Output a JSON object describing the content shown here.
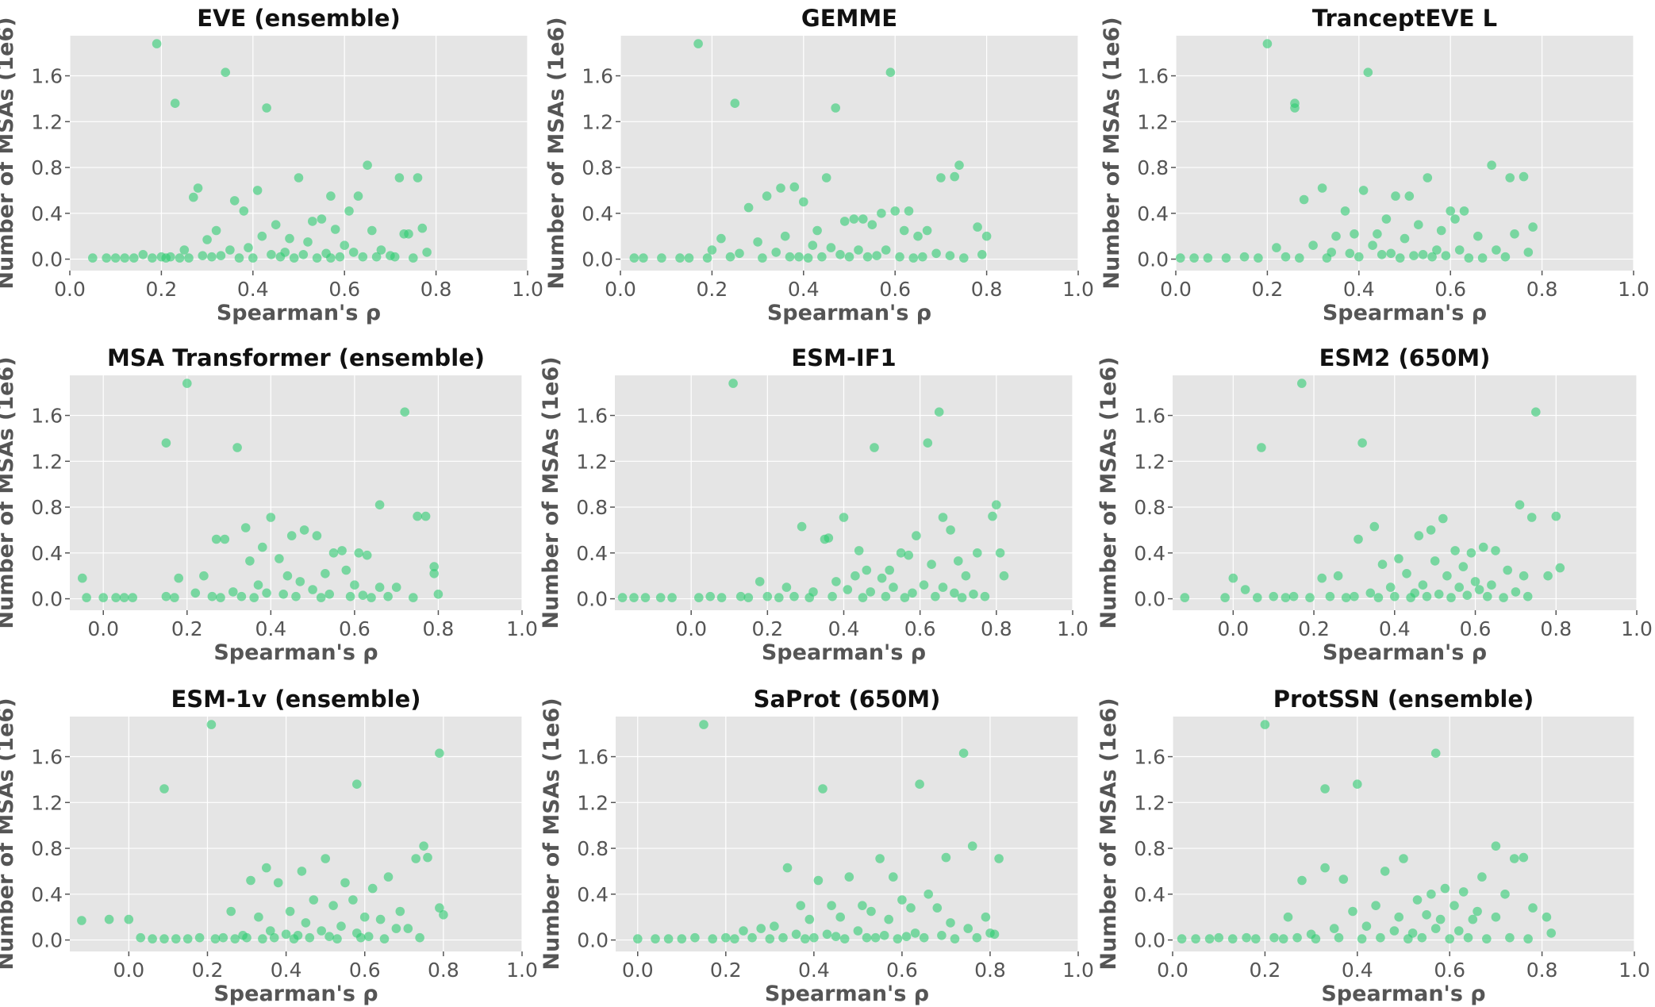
{
  "chart_data": [
    {
      "type": "scatter",
      "title": "EVE (ensemble)",
      "xlabel": "Spearman's ρ",
      "ylabel": "Number of MSAs (1e6)",
      "xlim": [
        0.0,
        1.0
      ],
      "ylim": [
        -0.1,
        1.95
      ],
      "xticks": [
        "0.0",
        "0.2",
        "0.4",
        "0.6",
        "0.8",
        "1.0"
      ],
      "yticks": [
        "0.0",
        "0.4",
        "0.8",
        "1.2",
        "1.6"
      ],
      "x": [
        0.19,
        0.34,
        0.23,
        0.43,
        0.65,
        0.72,
        0.76,
        0.28,
        0.27,
        0.41,
        0.5,
        0.36,
        0.38,
        0.57,
        0.63,
        0.61,
        0.53,
        0.55,
        0.45,
        0.32,
        0.74,
        0.73,
        0.77,
        0.42,
        0.48,
        0.58,
        0.66,
        0.3,
        0.52,
        0.6,
        0.39,
        0.25,
        0.35,
        0.47,
        0.56,
        0.62,
        0.68,
        0.44,
        0.33,
        0.29,
        0.51,
        0.59,
        0.64,
        0.37,
        0.46,
        0.54,
        0.7,
        0.24,
        0.05,
        0.08,
        0.1,
        0.12,
        0.14,
        0.16,
        0.18,
        0.2,
        0.21,
        0.22,
        0.26,
        0.31,
        0.4,
        0.49,
        0.57,
        0.67,
        0.71,
        0.75,
        0.78
      ],
      "y": [
        1.88,
        1.63,
        1.36,
        1.32,
        0.82,
        0.71,
        0.71,
        0.62,
        0.54,
        0.6,
        0.71,
        0.51,
        0.42,
        0.55,
        0.55,
        0.42,
        0.33,
        0.35,
        0.3,
        0.25,
        0.22,
        0.22,
        0.27,
        0.2,
        0.18,
        0.26,
        0.25,
        0.17,
        0.15,
        0.12,
        0.1,
        0.08,
        0.08,
        0.06,
        0.05,
        0.06,
        0.08,
        0.04,
        0.03,
        0.03,
        0.04,
        0.02,
        0.02,
        0.01,
        0.02,
        0.01,
        0.03,
        0.01,
        0.01,
        0.01,
        0.01,
        0.01,
        0.01,
        0.04,
        0.01,
        0.02,
        0.01,
        0.02,
        0.01,
        0.02,
        0.01,
        0.01,
        0.01,
        0.02,
        0.02,
        0.01,
        0.06
      ]
    },
    {
      "type": "scatter",
      "title": "GEMME",
      "xlabel": "Spearman's ρ",
      "ylabel": "Number of MSAs (1e6)",
      "xlim": [
        0.0,
        1.0
      ],
      "ylim": [
        -0.1,
        1.95
      ],
      "xticks": [
        "0.0",
        "0.2",
        "0.4",
        "0.6",
        "0.8",
        "1.0"
      ],
      "yticks": [
        "0.0",
        "0.4",
        "0.8",
        "1.2",
        "1.6"
      ],
      "x": [
        0.17,
        0.59,
        0.25,
        0.47,
        0.74,
        0.73,
        0.7,
        0.35,
        0.38,
        0.45,
        0.32,
        0.6,
        0.53,
        0.49,
        0.57,
        0.78,
        0.8,
        0.67,
        0.63,
        0.4,
        0.28,
        0.22,
        0.43,
        0.51,
        0.55,
        0.36,
        0.3,
        0.62,
        0.65,
        0.42,
        0.46,
        0.52,
        0.58,
        0.34,
        0.26,
        0.2,
        0.69,
        0.72,
        0.48,
        0.56,
        0.39,
        0.44,
        0.54,
        0.61,
        0.03,
        0.05,
        0.09,
        0.13,
        0.15,
        0.19,
        0.24,
        0.31,
        0.37,
        0.41,
        0.5,
        0.64,
        0.66,
        0.75,
        0.79
      ],
      "y": [
        1.88,
        1.63,
        1.36,
        1.32,
        0.82,
        0.72,
        0.71,
        0.62,
        0.63,
        0.71,
        0.55,
        0.42,
        0.35,
        0.33,
        0.4,
        0.28,
        0.2,
        0.25,
        0.42,
        0.5,
        0.45,
        0.18,
        0.25,
        0.35,
        0.3,
        0.2,
        0.15,
        0.25,
        0.2,
        0.12,
        0.1,
        0.08,
        0.08,
        0.06,
        0.05,
        0.08,
        0.05,
        0.03,
        0.04,
        0.03,
        0.02,
        0.02,
        0.02,
        0.02,
        0.01,
        0.01,
        0.01,
        0.01,
        0.01,
        0.01,
        0.02,
        0.01,
        0.02,
        0.01,
        0.02,
        0.01,
        0.02,
        0.01,
        0.04
      ]
    },
    {
      "type": "scatter",
      "title": "TranceptEVE L",
      "xlabel": "Spearman's ρ",
      "ylabel": "Number of MSAs (1e6)",
      "xlim": [
        0.0,
        1.0
      ],
      "ylim": [
        -0.1,
        1.95
      ],
      "xticks": [
        "0.0",
        "0.2",
        "0.4",
        "0.6",
        "0.8",
        "1.0"
      ],
      "yticks": [
        "0.0",
        "0.4",
        "0.8",
        "1.2",
        "1.6"
      ],
      "x": [
        0.2,
        0.42,
        0.26,
        0.26,
        0.69,
        0.76,
        0.73,
        0.32,
        0.41,
        0.55,
        0.48,
        0.28,
        0.37,
        0.51,
        0.6,
        0.63,
        0.61,
        0.46,
        0.53,
        0.58,
        0.39,
        0.44,
        0.35,
        0.74,
        0.78,
        0.66,
        0.5,
        0.43,
        0.3,
        0.22,
        0.57,
        0.62,
        0.7,
        0.34,
        0.38,
        0.47,
        0.54,
        0.45,
        0.52,
        0.59,
        0.01,
        0.04,
        0.07,
        0.11,
        0.15,
        0.18,
        0.24,
        0.27,
        0.33,
        0.4,
        0.49,
        0.56,
        0.64,
        0.67,
        0.72,
        0.77
      ],
      "y": [
        1.88,
        1.63,
        1.36,
        1.32,
        0.82,
        0.72,
        0.71,
        0.62,
        0.6,
        0.71,
        0.55,
        0.52,
        0.42,
        0.55,
        0.42,
        0.42,
        0.35,
        0.35,
        0.3,
        0.25,
        0.22,
        0.22,
        0.2,
        0.22,
        0.28,
        0.2,
        0.18,
        0.12,
        0.12,
        0.1,
        0.08,
        0.08,
        0.08,
        0.06,
        0.05,
        0.05,
        0.04,
        0.04,
        0.03,
        0.03,
        0.01,
        0.01,
        0.01,
        0.01,
        0.02,
        0.01,
        0.02,
        0.01,
        0.01,
        0.02,
        0.01,
        0.02,
        0.01,
        0.01,
        0.02,
        0.06
      ]
    },
    {
      "type": "scatter",
      "title": "MSA Transformer (ensemble)",
      "xlabel": "Spearman's ρ",
      "ylabel": "Number of MSAs (1e6)",
      "xlim": [
        -0.08,
        1.0
      ],
      "ylim": [
        -0.1,
        1.95
      ],
      "xticks": [
        "0.0",
        "0.2",
        "0.4",
        "0.6",
        "0.8",
        "1.0"
      ],
      "yticks": [
        "0.0",
        "0.4",
        "0.8",
        "1.2",
        "1.6"
      ],
      "x": [
        0.2,
        0.72,
        0.15,
        0.32,
        0.66,
        0.75,
        0.77,
        0.4,
        0.34,
        0.48,
        0.51,
        0.45,
        0.29,
        0.27,
        0.38,
        0.55,
        0.57,
        0.61,
        0.63,
        0.42,
        0.35,
        0.79,
        0.79,
        0.24,
        0.18,
        0.58,
        0.53,
        0.44,
        0.47,
        0.37,
        0.6,
        0.7,
        0.66,
        0.5,
        0.31,
        0.22,
        0.39,
        0.43,
        0.54,
        0.62,
        -0.05,
        -0.04,
        0.0,
        0.03,
        0.05,
        0.07,
        0.15,
        0.17,
        0.26,
        0.28,
        0.33,
        0.36,
        0.46,
        0.52,
        0.59,
        0.64,
        0.68,
        0.74,
        0.8
      ],
      "y": [
        1.88,
        1.63,
        1.36,
        1.32,
        0.82,
        0.72,
        0.72,
        0.71,
        0.62,
        0.6,
        0.55,
        0.55,
        0.52,
        0.52,
        0.45,
        0.4,
        0.42,
        0.4,
        0.38,
        0.35,
        0.33,
        0.28,
        0.22,
        0.2,
        0.18,
        0.25,
        0.22,
        0.2,
        0.15,
        0.12,
        0.12,
        0.1,
        0.1,
        0.08,
        0.06,
        0.05,
        0.05,
        0.04,
        0.04,
        0.03,
        0.18,
        0.01,
        0.01,
        0.01,
        0.01,
        0.01,
        0.02,
        0.01,
        0.02,
        0.01,
        0.02,
        0.01,
        0.02,
        0.01,
        0.02,
        0.01,
        0.02,
        0.01,
        0.04
      ]
    },
    {
      "type": "scatter",
      "title": "ESM-IF1",
      "xlabel": "Spearman's ρ",
      "ylabel": "Number of MSAs (1e6)",
      "xlim": [
        -0.2,
        1.0
      ],
      "ylim": [
        -0.1,
        1.95
      ],
      "xticks": [
        "0.0",
        "0.2",
        "0.4",
        "0.6",
        "0.8",
        "1.0"
      ],
      "yticks": [
        "0.0",
        "0.4",
        "0.8",
        "1.2",
        "1.6"
      ],
      "x": [
        0.11,
        0.65,
        0.48,
        0.62,
        0.8,
        0.79,
        0.66,
        0.29,
        0.4,
        0.36,
        0.35,
        0.68,
        0.59,
        0.55,
        0.75,
        0.81,
        0.7,
        0.44,
        0.57,
        0.63,
        0.52,
        0.46,
        0.72,
        0.5,
        0.43,
        0.38,
        0.25,
        0.18,
        0.61,
        0.66,
        0.53,
        0.41,
        0.32,
        0.47,
        0.58,
        0.69,
        0.74,
        0.82,
        -0.18,
        -0.15,
        -0.12,
        -0.08,
        -0.05,
        0.02,
        0.05,
        0.08,
        0.13,
        0.15,
        0.2,
        0.23,
        0.27,
        0.31,
        0.37,
        0.45,
        0.51,
        0.56,
        0.64,
        0.71,
        0.77
      ],
      "y": [
        1.88,
        1.63,
        1.32,
        1.36,
        0.82,
        0.72,
        0.71,
        0.63,
        0.71,
        0.53,
        0.52,
        0.6,
        0.55,
        0.4,
        0.4,
        0.4,
        0.33,
        0.42,
        0.38,
        0.3,
        0.25,
        0.25,
        0.2,
        0.18,
        0.2,
        0.15,
        0.1,
        0.15,
        0.12,
        0.1,
        0.1,
        0.08,
        0.06,
        0.06,
        0.05,
        0.05,
        0.04,
        0.2,
        0.01,
        0.01,
        0.01,
        0.01,
        0.01,
        0.01,
        0.02,
        0.01,
        0.02,
        0.01,
        0.02,
        0.01,
        0.02,
        0.01,
        0.02,
        0.01,
        0.02,
        0.01,
        0.02,
        0.01,
        0.02
      ]
    },
    {
      "type": "scatter",
      "title": "ESM2 (650M)",
      "xlabel": "Spearman's ρ",
      "ylabel": "Number of MSAs (1e6)",
      "xlim": [
        -0.15,
        1.0
      ],
      "ylim": [
        -0.1,
        1.95
      ],
      "xticks": [
        "0.0",
        "0.2",
        "0.4",
        "0.6",
        "0.8",
        "1.0"
      ],
      "yticks": [
        "0.0",
        "0.4",
        "0.8",
        "1.2",
        "1.6"
      ],
      "x": [
        0.17,
        0.75,
        0.32,
        0.07,
        0.71,
        0.8,
        0.74,
        0.35,
        0.49,
        0.46,
        0.52,
        0.31,
        0.55,
        0.62,
        0.65,
        0.59,
        0.41,
        0.37,
        0.5,
        0.57,
        0.68,
        0.72,
        0.81,
        0.43,
        0.26,
        0.22,
        0.53,
        0.6,
        0.64,
        0.47,
        0.39,
        0.56,
        0.61,
        0.7,
        0.34,
        0.45,
        0.51,
        0.58,
        -0.12,
        -0.02,
        0.0,
        0.03,
        0.06,
        0.1,
        0.13,
        0.15,
        0.19,
        0.24,
        0.28,
        0.3,
        0.36,
        0.4,
        0.44,
        0.48,
        0.54,
        0.63,
        0.67,
        0.73,
        0.78
      ],
      "y": [
        1.88,
        1.63,
        1.36,
        1.32,
        0.82,
        0.72,
        0.71,
        0.63,
        0.6,
        0.55,
        0.7,
        0.52,
        0.42,
        0.45,
        0.42,
        0.4,
        0.35,
        0.3,
        0.33,
        0.28,
        0.25,
        0.2,
        0.27,
        0.22,
        0.2,
        0.18,
        0.2,
        0.15,
        0.12,
        0.12,
        0.1,
        0.1,
        0.08,
        0.06,
        0.05,
        0.05,
        0.04,
        0.03,
        0.01,
        0.01,
        0.18,
        0.08,
        0.01,
        0.02,
        0.01,
        0.02,
        0.01,
        0.02,
        0.01,
        0.02,
        0.01,
        0.02,
        0.01,
        0.02,
        0.01,
        0.02,
        0.01,
        0.02,
        0.2
      ]
    },
    {
      "type": "scatter",
      "title": "ESM-1v (ensemble)",
      "xlabel": "Spearman's ρ",
      "ylabel": "Number of MSAs (1e6)",
      "xlim": [
        -0.15,
        1.0
      ],
      "ylim": [
        -0.1,
        1.95
      ],
      "xticks": [
        "0.0",
        "0.2",
        "0.4",
        "0.6",
        "0.8",
        "1.0"
      ],
      "yticks": [
        "0.0",
        "0.4",
        "0.8",
        "1.2",
        "1.6"
      ],
      "x": [
        0.21,
        0.79,
        0.58,
        0.09,
        0.75,
        0.76,
        0.73,
        0.35,
        0.5,
        0.44,
        0.31,
        0.66,
        0.62,
        0.55,
        0.38,
        0.47,
        0.57,
        0.69,
        0.79,
        0.8,
        0.52,
        0.41,
        0.6,
        0.64,
        0.26,
        0.33,
        0.45,
        0.54,
        0.68,
        0.71,
        0.36,
        0.49,
        0.58,
        0.4,
        0.29,
        0.43,
        0.51,
        0.61,
        -0.12,
        -0.05,
        0.0,
        0.03,
        0.06,
        0.09,
        0.12,
        0.15,
        0.18,
        0.22,
        0.24,
        0.27,
        0.3,
        0.34,
        0.37,
        0.42,
        0.46,
        0.53,
        0.59,
        0.65,
        0.74
      ],
      "y": [
        1.88,
        1.63,
        1.36,
        1.32,
        0.82,
        0.72,
        0.71,
        0.63,
        0.71,
        0.6,
        0.52,
        0.55,
        0.45,
        0.5,
        0.5,
        0.35,
        0.35,
        0.25,
        0.28,
        0.22,
        0.3,
        0.25,
        0.2,
        0.18,
        0.25,
        0.2,
        0.15,
        0.12,
        0.1,
        0.1,
        0.08,
        0.08,
        0.06,
        0.05,
        0.04,
        0.04,
        0.03,
        0.03,
        0.17,
        0.18,
        0.18,
        0.02,
        0.01,
        0.01,
        0.01,
        0.01,
        0.02,
        0.01,
        0.02,
        0.01,
        0.02,
        0.01,
        0.02,
        0.01,
        0.02,
        0.01,
        0.02,
        0.01,
        0.02
      ]
    },
    {
      "type": "scatter",
      "title": "SaProt (650M)",
      "xlabel": "Spearman's ρ",
      "ylabel": "Number of MSAs (1e6)",
      "xlim": [
        -0.05,
        1.0
      ],
      "ylim": [
        -0.1,
        1.95
      ],
      "xticks": [
        "0.0",
        "0.2",
        "0.4",
        "0.6",
        "0.8",
        "1.0"
      ],
      "yticks": [
        "0.0",
        "0.4",
        "0.8",
        "1.2",
        "1.6"
      ],
      "x": [
        0.15,
        0.74,
        0.42,
        0.64,
        0.76,
        0.7,
        0.82,
        0.34,
        0.41,
        0.55,
        0.48,
        0.58,
        0.66,
        0.6,
        0.51,
        0.44,
        0.37,
        0.62,
        0.68,
        0.79,
        0.53,
        0.46,
        0.39,
        0.57,
        0.71,
        0.75,
        0.31,
        0.28,
        0.24,
        0.5,
        0.63,
        0.43,
        0.36,
        0.56,
        0.69,
        0.8,
        0.45,
        0.52,
        0.61,
        0.0,
        0.04,
        0.07,
        0.1,
        0.13,
        0.17,
        0.2,
        0.22,
        0.26,
        0.3,
        0.33,
        0.38,
        0.4,
        0.47,
        0.54,
        0.59,
        0.65,
        0.72,
        0.77,
        0.81
      ],
      "y": [
        1.88,
        1.63,
        1.32,
        1.36,
        0.82,
        0.72,
        0.71,
        0.63,
        0.52,
        0.71,
        0.55,
        0.55,
        0.4,
        0.35,
        0.3,
        0.3,
        0.3,
        0.28,
        0.28,
        0.2,
        0.25,
        0.2,
        0.18,
        0.18,
        0.15,
        0.1,
        0.12,
        0.1,
        0.08,
        0.08,
        0.06,
        0.05,
        0.05,
        0.04,
        0.04,
        0.06,
        0.03,
        0.02,
        0.03,
        0.01,
        0.01,
        0.01,
        0.01,
        0.02,
        0.01,
        0.02,
        0.01,
        0.02,
        0.01,
        0.02,
        0.01,
        0.02,
        0.01,
        0.02,
        0.01,
        0.02,
        0.01,
        0.02,
        0.05
      ]
    },
    {
      "type": "scatter",
      "title": "ProtSSN (ensemble)",
      "xlabel": "Spearman's ρ",
      "ylabel": "Number of MSAs (1e6)",
      "xlim": [
        0.0,
        1.0
      ],
      "ylim": [
        -0.1,
        1.95
      ],
      "xticks": [
        "0.0",
        "0.2",
        "0.4",
        "0.6",
        "0.8",
        "1.0"
      ],
      "yticks": [
        "0.0",
        "0.4",
        "0.8",
        "1.2",
        "1.6"
      ],
      "x": [
        0.2,
        0.57,
        0.33,
        0.4,
        0.7,
        0.76,
        0.74,
        0.33,
        0.5,
        0.37,
        0.46,
        0.28,
        0.59,
        0.67,
        0.63,
        0.56,
        0.72,
        0.78,
        0.81,
        0.53,
        0.44,
        0.61,
        0.66,
        0.39,
        0.25,
        0.49,
        0.55,
        0.58,
        0.65,
        0.7,
        0.42,
        0.35,
        0.57,
        0.62,
        0.48,
        0.52,
        0.3,
        0.02,
        0.05,
        0.08,
        0.1,
        0.13,
        0.16,
        0.18,
        0.22,
        0.24,
        0.27,
        0.31,
        0.36,
        0.41,
        0.45,
        0.51,
        0.54,
        0.6,
        0.64,
        0.68,
        0.73,
        0.77,
        0.82
      ],
      "y": [
        1.88,
        1.63,
        1.32,
        1.36,
        0.82,
        0.72,
        0.71,
        0.63,
        0.71,
        0.53,
        0.6,
        0.52,
        0.45,
        0.55,
        0.42,
        0.4,
        0.4,
        0.28,
        0.2,
        0.35,
        0.3,
        0.3,
        0.25,
        0.25,
        0.2,
        0.2,
        0.22,
        0.18,
        0.18,
        0.2,
        0.12,
        0.1,
        0.1,
        0.08,
        0.08,
        0.06,
        0.05,
        0.01,
        0.01,
        0.01,
        0.02,
        0.01,
        0.02,
        0.01,
        0.02,
        0.01,
        0.02,
        0.01,
        0.02,
        0.01,
        0.02,
        0.01,
        0.02,
        0.01,
        0.02,
        0.01,
        0.02,
        0.01,
        0.06
      ]
    }
  ],
  "colors": {
    "point": "#2ecc71",
    "plot_background": "#e5e5e5",
    "grid": "#ffffff",
    "title_text": "#111111",
    "axis_text": "#555555"
  }
}
